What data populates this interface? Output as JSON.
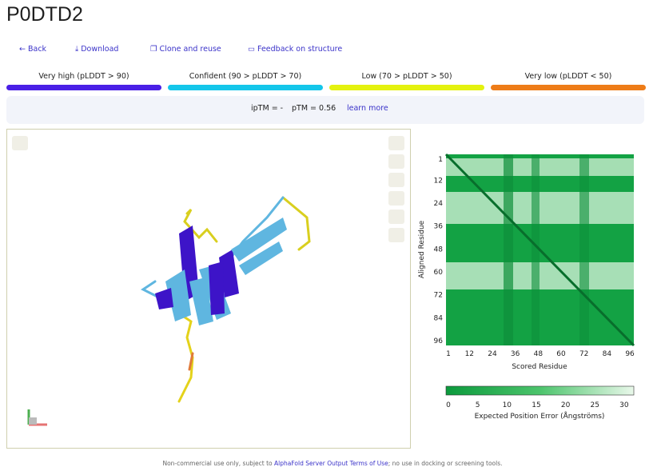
{
  "header": {
    "title": "P0DTD2"
  },
  "actions": [
    "Back",
    "Download",
    "Clone and reuse",
    "Feedback on structure"
  ],
  "legend": [
    {
      "label": "Very high (pLDDT > 90)",
      "color": "#4a1fe6"
    },
    {
      "label": "Confident (90 > pLDDT > 70)",
      "color": "#14c6ea"
    },
    {
      "label": "Low (70 > pLDDT > 50)",
      "color": "#e4f20f"
    },
    {
      "label": "Very low (pLDDT < 50)",
      "color": "#ee7c18"
    }
  ],
  "metrics": {
    "iptm": "ipTM = -",
    "ptm": "pTM = 0.56",
    "link": "learn more"
  },
  "pae": {
    "y_label": "Aligned Residue",
    "x_label": "Scored Residue",
    "yticks": [
      1,
      12,
      24,
      36,
      48,
      60,
      72,
      84,
      96
    ],
    "xticks": [
      1,
      12,
      24,
      36,
      48,
      60,
      72,
      84,
      96
    ],
    "colorbar_ticks": [
      0,
      5,
      10,
      15,
      20,
      25,
      30
    ],
    "colorbar_label": "Expected Position Error (Ångströms)"
  },
  "footer": {
    "before": "Non-commercial use only, subject to ",
    "link": "AlphaFold Server Output Terms of Use",
    "after": "; no use in docking or screening tools."
  }
}
